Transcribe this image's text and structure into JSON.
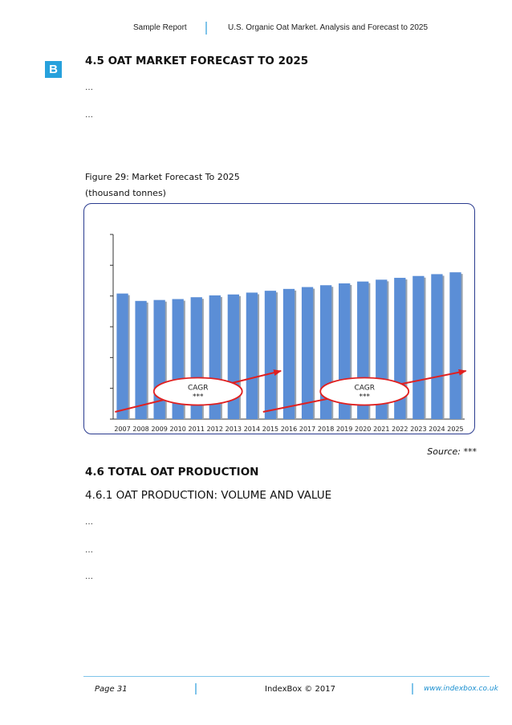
{
  "header": {
    "left": "Sample Report",
    "right": "U.S. Organic Oat Market. Analysis and Forecast to 2025"
  },
  "logo": {
    "letter": "B",
    "color": "#27a1dc"
  },
  "section_45": {
    "title": "4.5 OAT MARKET FORECAST TO 2025",
    "paragraphs": [
      "…",
      "…"
    ]
  },
  "figure": {
    "caption": "Figure 29: Market Forecast To 2025",
    "unit": "(thousand tonnes)",
    "source": "Source: ***"
  },
  "chart_data": {
    "type": "bar",
    "categories": [
      "2007",
      "2008",
      "2009",
      "2010",
      "2011",
      "2012",
      "2013",
      "2014",
      "2015",
      "2016",
      "2017",
      "2018",
      "2019",
      "2020",
      "2021",
      "2022",
      "2023",
      "2024",
      "2025"
    ],
    "series": [
      {
        "values": [
          68,
          64,
          64.5,
          65,
          66,
          67,
          67.5,
          68.5,
          69.5,
          70.5,
          71.5,
          72.5,
          73.5,
          74.5,
          75.5,
          76.5,
          77.5,
          78.5,
          79.5
        ]
      }
    ],
    "ylim": [
      0,
      100
    ],
    "bar_color": "#5b8ed6",
    "annotations": [
      {
        "label": "CAGR",
        "value": "***",
        "from": "2007",
        "to": "2015"
      },
      {
        "label": "CAGR",
        "value": "***",
        "from": "2015",
        "to": "2025"
      }
    ],
    "arrow_color": "#e02020",
    "grid": false
  },
  "section_46": {
    "title": "4.6 TOTAL OAT PRODUCTION",
    "subtitle": "4.6.1 OAT PRODUCTION: VOLUME AND VALUE",
    "paragraphs": [
      "…",
      "…",
      "…"
    ]
  },
  "footer": {
    "page": "Page 31",
    "center": "IndexBox © 2017",
    "right": "www.indexbox.co.uk"
  }
}
